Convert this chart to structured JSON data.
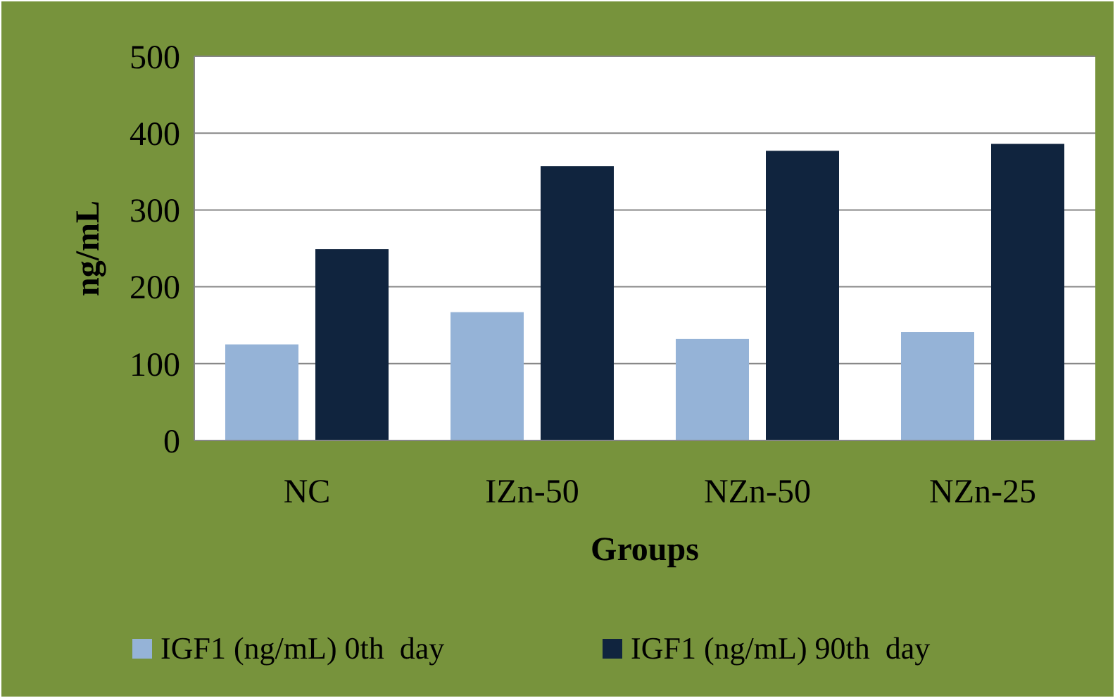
{
  "chart_data": {
    "type": "bar",
    "xlabel": "Groups",
    "ylabel": "ng/mL",
    "categories": [
      "NC",
      "IZn-50",
      "NZn-50",
      "NZn-25"
    ],
    "series": [
      {
        "name": "IGF1 (ng/mL) 0th  day",
        "color": "#95b3d7",
        "values": [
          125,
          167,
          132,
          141
        ]
      },
      {
        "name": "IGF1 (ng/mL) 90th  day",
        "color": "#10243e",
        "values": [
          249,
          357,
          377,
          386
        ]
      }
    ],
    "ylim": [
      0,
      500
    ],
    "yticks": [
      0,
      100,
      200,
      300,
      400,
      500
    ],
    "grid": "y",
    "legend": "bottom"
  }
}
